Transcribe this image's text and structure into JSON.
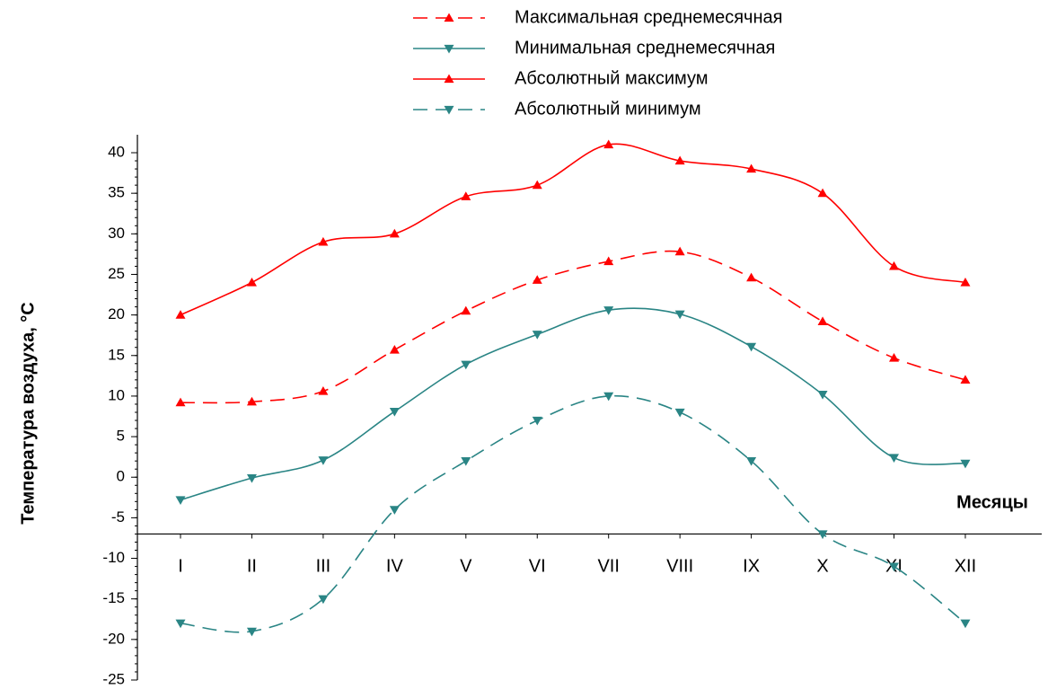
{
  "chart_data": {
    "type": "line",
    "xlabel": "Месяцы",
    "ylabel": "Температура воздуха, °C",
    "categories": [
      "I",
      "II",
      "III",
      "IV",
      "V",
      "VI",
      "VII",
      "VIII",
      "IX",
      "X",
      "XI",
      "XII"
    ],
    "series": [
      {
        "name": "Максимальная среднемесячная",
        "color": "#ff0000",
        "line_style": "dashed",
        "marker": "triangle-up",
        "values": [
          9.2,
          9.3,
          10.6,
          15.7,
          20.5,
          24.3,
          26.6,
          27.8,
          24.6,
          19.2,
          14.7,
          12.0
        ]
      },
      {
        "name": "Минимальная среднемесячная",
        "color": "#2a8585",
        "line_style": "solid",
        "marker": "triangle-down",
        "values": [
          -2.8,
          -0.1,
          2.1,
          8.1,
          13.9,
          17.6,
          20.6,
          20.1,
          16.1,
          10.2,
          2.4,
          1.7
        ]
      },
      {
        "name": "Абсолютный максимум",
        "color": "#ff0000",
        "line_style": "solid",
        "marker": "triangle-up",
        "values": [
          20,
          24,
          29,
          30,
          34.6,
          36,
          41,
          39,
          38,
          35,
          26,
          24
        ]
      },
      {
        "name": "Абсолютный минимум",
        "color": "#2a8585",
        "line_style": "dashed",
        "marker": "triangle-down",
        "values": [
          -18,
          -19,
          -15,
          -4,
          2,
          7,
          10,
          8,
          2,
          -7,
          -11,
          -18
        ]
      }
    ],
    "ylim": [
      -25,
      40
    ],
    "yticks": [
      -25,
      -20,
      -15,
      -10,
      -5,
      0,
      5,
      10,
      15,
      20,
      25,
      30,
      35,
      40
    ],
    "x_axis_at": -7,
    "smooth": true,
    "grid": false
  }
}
